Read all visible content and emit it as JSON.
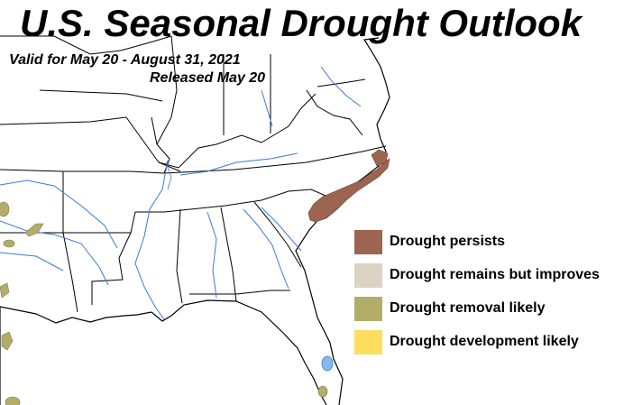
{
  "header": {
    "title": "U.S. Seasonal Drought Outlook",
    "valid_text": "Valid for May 20 - August 31, 2021",
    "released_text": "Released May 20"
  },
  "map": {
    "colors": {
      "land": "#ffffff",
      "state_borders": "#000000",
      "rivers": "#3b7bd4",
      "lakes": "#8ab7ee"
    }
  },
  "legend": {
    "items": [
      {
        "label": "Drought persists",
        "color": "#9d6450"
      },
      {
        "label": "Drought remains but improves",
        "color": "#ddd3c2"
      },
      {
        "label": "Drought removal likely",
        "color": "#b3ad6a"
      },
      {
        "label": "Drought development likely",
        "color": "#ffdd5e"
      }
    ]
  }
}
